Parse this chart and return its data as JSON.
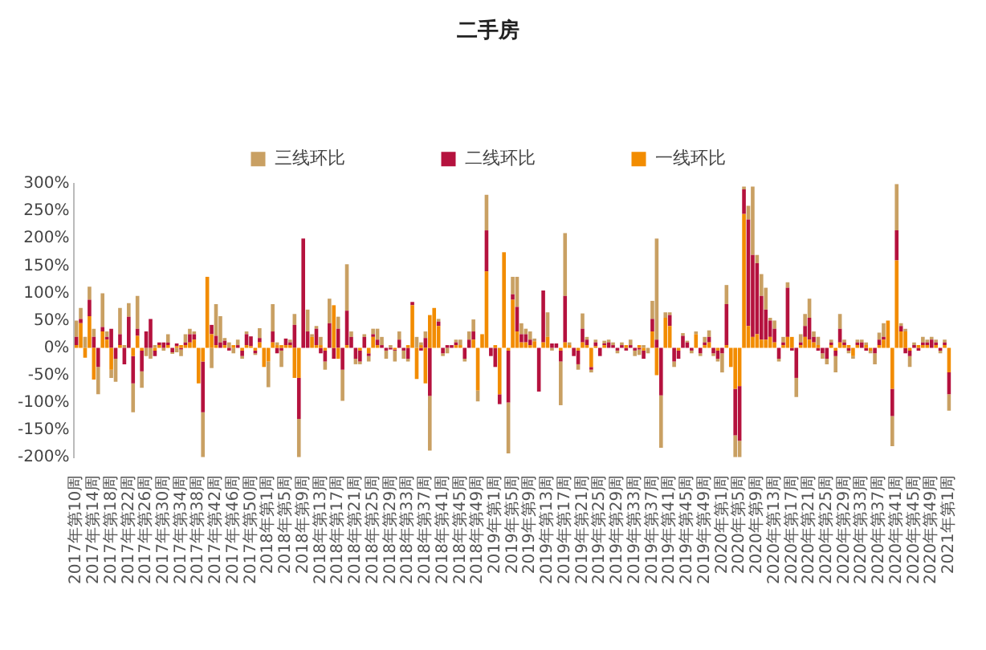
{
  "chart_data": {
    "type": "bar",
    "title": "二手房",
    "stacked": true,
    "legend": "top",
    "categories": [
      "2017年第10周",
      null,
      null,
      null,
      "2017年第14周",
      null,
      null,
      null,
      "2017年第18周",
      null,
      null,
      null,
      "2017年第22周",
      null,
      null,
      null,
      "2017年第26周",
      null,
      null,
      null,
      "2017年第30周",
      null,
      null,
      null,
      "2017年第34周",
      null,
      null,
      null,
      "2017年第38周",
      null,
      null,
      null,
      "2017年第42周",
      null,
      null,
      null,
      "2017年第46周",
      null,
      null,
      null,
      "2017年第50周",
      null,
      null,
      null,
      "2018年第1周",
      null,
      null,
      null,
      "2018年第5周",
      null,
      null,
      null,
      "2018年第9周",
      null,
      null,
      null,
      "2018年第13周",
      null,
      null,
      null,
      "2018年第17周",
      null,
      null,
      null,
      "2018年第21周",
      null,
      null,
      null,
      "2018年第25周",
      null,
      null,
      null,
      "2018年第29周",
      null,
      null,
      null,
      "2018年第33周",
      null,
      null,
      null,
      "2018年第37周",
      null,
      null,
      null,
      "2018年第41周",
      null,
      null,
      null,
      "2018年第45周",
      null,
      null,
      null,
      "2018年第49周",
      null,
      null,
      null,
      "2019年第1周",
      null,
      null,
      null,
      "2019年第5周",
      null,
      null,
      null,
      "2019年第9周",
      null,
      null,
      null,
      "2019年第13周",
      null,
      null,
      null,
      "2019年第17周",
      null,
      null,
      null,
      "2019年第21周",
      null,
      null,
      null,
      "2019年第25周",
      null,
      null,
      null,
      "2019年第29周",
      null,
      null,
      null,
      "2019年第33周",
      null,
      null,
      null,
      "2019年第37周",
      null,
      null,
      null,
      "2019年第41周",
      null,
      null,
      null,
      "2019年第45周",
      null,
      null,
      null,
      "2019年第49周",
      null,
      null,
      null,
      "2020年第1周",
      null,
      null,
      null,
      "2020年第5周",
      null,
      null,
      null,
      "2020年第9周",
      null,
      null,
      null,
      "2020年第13周",
      null,
      null,
      null,
      "2020年第17周",
      null,
      null,
      null,
      "2020年第21周",
      null,
      null,
      null,
      "2020年第25周",
      null,
      null,
      null,
      "2020年第29周",
      null,
      null,
      null,
      "2020年第33周",
      null,
      null,
      null,
      "2020年第37周",
      null,
      null,
      null,
      "2020年第41周",
      null,
      null,
      null,
      "2020年第45周",
      null,
      null,
      null,
      "2020年第49周",
      null,
      null,
      null,
      "2021年第1周"
    ],
    "series": [
      {
        "name": "一线环比",
        "color": "#f28c00",
        "values": [
          5,
          45,
          -18,
          58,
          -58,
          0,
          30,
          15,
          -40,
          0,
          5,
          0,
          0,
          -15,
          22,
          -5,
          0,
          0,
          -5,
          5,
          0,
          5,
          0,
          3,
          5,
          5,
          10,
          15,
          -65,
          -25,
          130,
          25,
          5,
          0,
          5,
          0,
          5,
          0,
          -5,
          5,
          3,
          -5,
          10,
          -35,
          -25,
          10,
          5,
          5,
          5,
          5,
          -55,
          -55,
          0,
          0,
          20,
          5,
          5,
          -5,
          0,
          78,
          -20,
          0,
          5,
          0,
          0,
          -5,
          0,
          -10,
          20,
          5,
          0,
          0,
          0,
          -3,
          0,
          0,
          5,
          78,
          -57,
          5,
          -65,
          60,
          73,
          40,
          0,
          0,
          0,
          5,
          5,
          0,
          0,
          15,
          -78,
          25,
          140,
          0,
          5,
          -85,
          175,
          -5,
          88,
          30,
          10,
          10,
          5,
          12,
          0,
          10,
          20,
          0,
          0,
          -5,
          10,
          5,
          0,
          -5,
          10,
          5,
          -35,
          3,
          0,
          5,
          0,
          0,
          0,
          0,
          5,
          0,
          0,
          5,
          -5,
          0,
          30,
          -50,
          0,
          55,
          40,
          0,
          -5,
          0,
          0,
          0,
          25,
          0,
          5,
          10,
          0,
          -5,
          0,
          5,
          -35,
          -75,
          -70,
          245,
          40,
          20,
          25,
          15,
          15,
          20,
          10,
          0,
          5,
          20,
          20,
          0,
          5,
          20,
          15,
          10,
          5,
          0,
          0,
          5,
          -5,
          10,
          5,
          5,
          -15,
          5,
          0,
          5,
          -5,
          0,
          5,
          15,
          50,
          -75,
          160,
          30,
          30,
          -5,
          0,
          5,
          5,
          5,
          0,
          5,
          0,
          5,
          -45
        ]
      },
      {
        "name": "二线环比",
        "color": "#b5123e",
        "values": [
          15,
          8,
          0,
          30,
          20,
          -35,
          8,
          5,
          35,
          -20,
          20,
          -30,
          57,
          -50,
          13,
          -38,
          30,
          53,
          -10,
          5,
          10,
          5,
          -8,
          5,
          -3,
          5,
          15,
          10,
          0,
          -93,
          0,
          17,
          17,
          10,
          8,
          -5,
          0,
          5,
          -10,
          20,
          18,
          -5,
          8,
          0,
          0,
          20,
          -10,
          -5,
          12,
          5,
          42,
          -75,
          200,
          30,
          0,
          30,
          -10,
          -20,
          45,
          -20,
          35,
          -40,
          63,
          20,
          -20,
          -20,
          20,
          -5,
          5,
          10,
          5,
          -5,
          -3,
          -2,
          15,
          -5,
          -20,
          6,
          0,
          -5,
          18,
          -88,
          0,
          8,
          -10,
          5,
          5,
          5,
          0,
          -20,
          15,
          15,
          0,
          0,
          75,
          -15,
          -35,
          -18,
          0,
          -95,
          10,
          45,
          15,
          15,
          10,
          0,
          -80,
          95,
          0,
          8,
          8,
          -20,
          85,
          0,
          -15,
          -25,
          25,
          10,
          -5,
          7,
          -15,
          3,
          10,
          5,
          -5,
          5,
          -5,
          5,
          -5,
          -3,
          -15,
          0,
          23,
          15,
          -87,
          0,
          20,
          -25,
          -15,
          22,
          10,
          -5,
          0,
          -10,
          5,
          10,
          -10,
          -15,
          -10,
          75,
          0,
          -85,
          -100,
          45,
          195,
          150,
          130,
          80,
          55,
          30,
          25,
          -20,
          5,
          90,
          -5,
          -55,
          5,
          20,
          40,
          10,
          -5,
          -10,
          -20,
          5,
          -10,
          25,
          5,
          -5,
          0,
          5,
          10,
          -5,
          0,
          -10,
          10,
          5,
          0,
          -50,
          55,
          10,
          -10,
          -10,
          5,
          -5,
          5,
          5,
          15,
          5,
          -5,
          5,
          -40
        ]
      },
      {
        "name": "三线环比",
        "color": "#c9a063",
        "values": [
          30,
          20,
          20,
          24,
          15,
          -50,
          62,
          10,
          -15,
          -42,
          48,
          5,
          25,
          -53,
          60,
          -30,
          -15,
          -20,
          5,
          0,
          -5,
          15,
          -3,
          -8,
          -12,
          15,
          10,
          5,
          0,
          -82,
          0,
          -37,
          58,
          48,
          5,
          10,
          -10,
          10,
          -5,
          5,
          0,
          -3,
          18,
          0,
          -47,
          50,
          5,
          -30,
          0,
          5,
          20,
          -70,
          0,
          40,
          5,
          5,
          15,
          -15,
          45,
          0,
          22,
          -57,
          85,
          10,
          -10,
          -5,
          5,
          -10,
          10,
          20,
          15,
          -15,
          5,
          -20,
          15,
          -15,
          -5,
          0,
          20,
          5,
          12,
          -100,
          0,
          5,
          -5,
          -10,
          0,
          5,
          10,
          -5,
          15,
          22,
          -20,
          0,
          65,
          0,
          0,
          0,
          0,
          -93,
          32,
          55,
          20,
          10,
          15,
          5,
          0,
          0,
          45,
          -5,
          0,
          -80,
          115,
          5,
          0,
          -10,
          28,
          5,
          -5,
          5,
          0,
          5,
          5,
          5,
          -5,
          5,
          0,
          10,
          -10,
          -10,
          5,
          -10,
          33,
          185,
          -96,
          10,
          5,
          -10,
          0,
          5,
          3,
          -5,
          5,
          -5,
          10,
          12,
          -5,
          -5,
          -35,
          35,
          0,
          -40,
          -30,
          5,
          25,
          125,
          15,
          40,
          40,
          5,
          15,
          -5,
          10,
          10,
          0,
          -35,
          15,
          22,
          35,
          10,
          15,
          -10,
          -10,
          5,
          -30,
          27,
          5,
          -5,
          -5,
          5,
          5,
          5,
          -5,
          -20,
          13,
          25,
          0,
          -55,
          85,
          5,
          5,
          -20,
          5,
          0,
          10,
          5,
          5,
          5,
          -5,
          5,
          -30
        ]
      }
    ],
    "ylim": [
      -200,
      300
    ],
    "yticks": [
      {
        "value": -200,
        "label": "-200%"
      },
      {
        "value": -150,
        "label": "-150%"
      },
      {
        "value": -100,
        "label": "-100%"
      },
      {
        "value": -50,
        "label": "-50%"
      },
      {
        "value": 0,
        "label": "0%"
      },
      {
        "value": 50,
        "label": "50%"
      },
      {
        "value": 100,
        "label": "100%"
      },
      {
        "value": 150,
        "label": "150%"
      },
      {
        "value": 200,
        "label": "200%"
      },
      {
        "value": 250,
        "label": "250%"
      },
      {
        "value": 300,
        "label": "300%"
      }
    ]
  }
}
